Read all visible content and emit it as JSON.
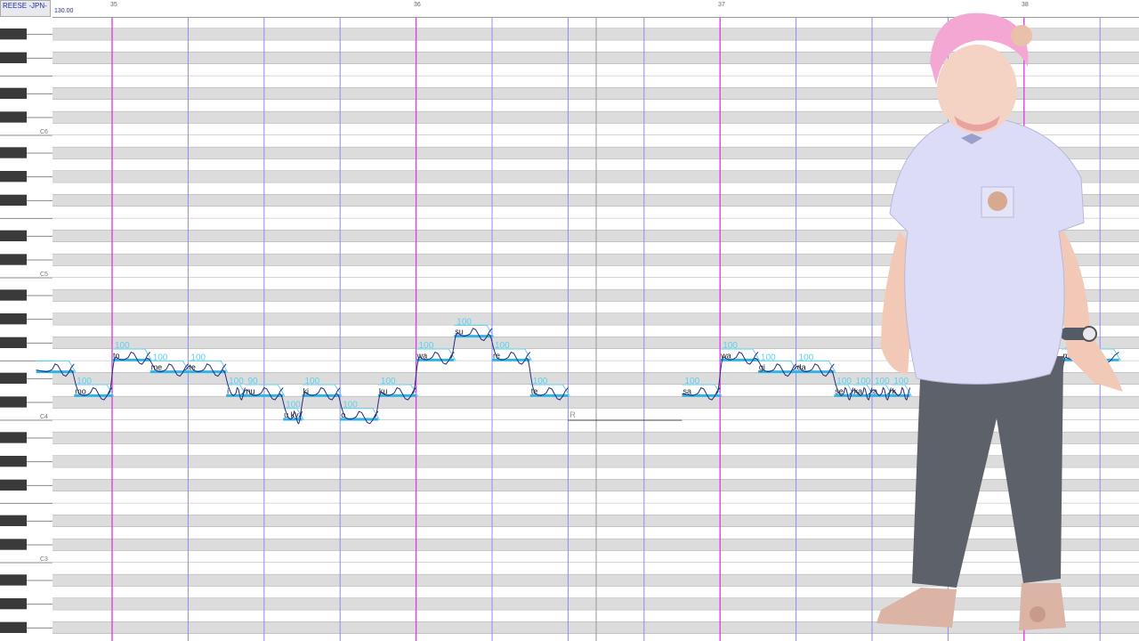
{
  "project": {
    "singer": "REESE -JPN-",
    "tempo": "130.00"
  },
  "measures": [
    {
      "number": "35",
      "beat_offset": 0
    },
    {
      "number": "36",
      "beat_offset": 4
    },
    {
      "number": "37",
      "beat_offset": 8
    },
    {
      "number": "38",
      "beat_offset": 12
    }
  ],
  "octave_labels": [
    "C6",
    "C5",
    "C4",
    "C3"
  ],
  "colors": {
    "measure_line": "#e040e0",
    "beat_line": "#8c8cf0",
    "black_row": "#dcdcdc",
    "note_bar": "#30b4e4",
    "note_outline": "#5cd0ee",
    "pitch_curve": "#2a2a80",
    "black_key": "#3a3a3a"
  },
  "notes": [
    {
      "lyric": "",
      "intensity": "",
      "pitch": "E4",
      "measure": 34,
      "beat": 3.0,
      "length": 0.5
    },
    {
      "lyric": "mo",
      "intensity": "100",
      "pitch": "D4",
      "measure": 34,
      "beat": 3.5,
      "length": 0.5
    },
    {
      "lyric": "to",
      "intensity": "100",
      "pitch": "F4",
      "measure": 35,
      "beat": 0.0,
      "length": 0.5
    },
    {
      "lyric": "me",
      "intensity": "100",
      "pitch": "E4",
      "measure": 35,
      "beat": 0.5,
      "length": 0.5
    },
    {
      "lyric": "te",
      "intensity": "100",
      "pitch": "E4",
      "measure": 35,
      "beat": 1.0,
      "length": 0.5
    },
    {
      "lyric": "i",
      "intensity": "100",
      "pitch": "D4",
      "measure": 35,
      "beat": 1.5,
      "length": 0.25
    },
    {
      "lyric": "nu",
      "intensity": "90",
      "pitch": "D4",
      "measure": 35,
      "beat": 1.75,
      "length": 0.5
    },
    {
      "lyric": "u ky",
      "intensity": "100",
      "pitch": "C4",
      "measure": 35,
      "beat": 2.25,
      "length": 0.25
    },
    {
      "lyric": "ki",
      "intensity": "100",
      "pitch": "D4",
      "measure": 35,
      "beat": 2.5,
      "length": 0.5
    },
    {
      "lyric": "o",
      "intensity": "100",
      "pitch": "C4",
      "measure": 35,
      "beat": 3.0,
      "length": 0.5
    },
    {
      "lyric": "ku",
      "intensity": "100",
      "pitch": "D4",
      "measure": 35,
      "beat": 3.5,
      "length": 0.5
    },
    {
      "lyric": "wa",
      "intensity": "100",
      "pitch": "F4",
      "measure": 36,
      "beat": 0.0,
      "length": 0.5
    },
    {
      "lyric": "su",
      "intensity": "100",
      "pitch": "G4",
      "measure": 36,
      "beat": 0.5,
      "length": 0.5
    },
    {
      "lyric": "re",
      "intensity": "100",
      "pitch": "F4",
      "measure": 36,
      "beat": 1.0,
      "length": 0.5
    },
    {
      "lyric": "te",
      "intensity": "100",
      "pitch": "D4",
      "measure": 36,
      "beat": 1.5,
      "length": 0.5
    },
    {
      "lyric": "R",
      "intensity": "",
      "pitch": "C4",
      "measure": 36,
      "beat": 2.0,
      "length": 1.5,
      "rest": true
    },
    {
      "lyric": "sa",
      "intensity": "100",
      "pitch": "D4",
      "measure": 36,
      "beat": 3.5,
      "length": 0.5
    },
    {
      "lyric": "wa",
      "intensity": "100",
      "pitch": "F4",
      "measure": 37,
      "beat": 0.0,
      "length": 0.5
    },
    {
      "lyric": "gi",
      "intensity": "100",
      "pitch": "E4",
      "measure": 37,
      "beat": 0.5,
      "length": 0.5
    },
    {
      "lyric": "da",
      "intensity": "100",
      "pitch": "E4",
      "measure": 37,
      "beat": 1.0,
      "length": 0.5
    },
    {
      "lyric": "se",
      "intensity": "100",
      "pitch": "D4",
      "measure": 37,
      "beat": 1.5,
      "length": 0.25
    },
    {
      "lyric": "ka",
      "intensity": "100",
      "pitch": "D4",
      "measure": 37,
      "beat": 1.75,
      "length": 0.25
    },
    {
      "lyric": "a",
      "intensity": "100",
      "pitch": "D4",
      "measure": 37,
      "beat": 2.0,
      "length": 0.25
    },
    {
      "lyric": "k",
      "intensity": "100",
      "pitch": "D4",
      "measure": 37,
      "beat": 2.25,
      "length": 0.25
    },
    {
      "lyric": "m",
      "intensity": "100",
      "pitch": "F4",
      "measure": 38,
      "beat": 0.5,
      "length": 0.75
    }
  ]
}
